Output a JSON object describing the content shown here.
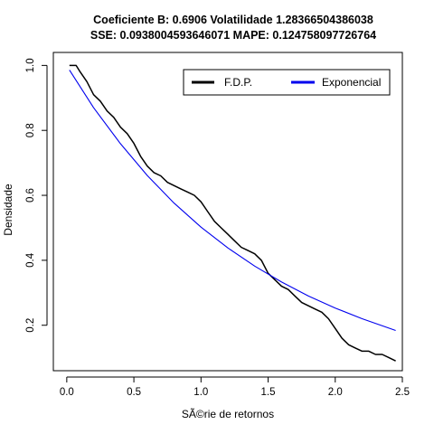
{
  "chart_data": {
    "type": "line",
    "title_line1": "Coeficiente B:  0.6906 Volatilidade 1.28366504386038",
    "title_line2": "SSE: 0.0938004593646071 MAPE:  0.124758097726764",
    "xlabel": "SÃ©rie de retornos",
    "ylabel": "Densidade",
    "xlim": [
      -0.1,
      2.5
    ],
    "ylim": [
      0.06,
      1.04
    ],
    "xticks": [
      0.0,
      0.5,
      1.0,
      1.5,
      2.0,
      2.5
    ],
    "xtick_labels": [
      "0.0",
      "0.5",
      "1.0",
      "1.5",
      "2.0",
      "2.5"
    ],
    "yticks": [
      0.2,
      0.4,
      0.6,
      0.8,
      1.0
    ],
    "ytick_labels": [
      "0.2",
      "0.4",
      "0.6",
      "0.8",
      "1.0"
    ],
    "grid": false,
    "legend_position": "top-right",
    "series": [
      {
        "name": "F.D.P.",
        "color": "#000000",
        "x": [
          0.02,
          0.07,
          0.1,
          0.15,
          0.2,
          0.25,
          0.3,
          0.35,
          0.4,
          0.45,
          0.5,
          0.55,
          0.6,
          0.65,
          0.7,
          0.75,
          0.8,
          0.85,
          0.9,
          0.95,
          1.0,
          1.05,
          1.1,
          1.15,
          1.2,
          1.25,
          1.3,
          1.35,
          1.4,
          1.45,
          1.5,
          1.55,
          1.6,
          1.65,
          1.7,
          1.75,
          1.8,
          1.85,
          1.9,
          1.95,
          2.0,
          2.05,
          2.1,
          2.15,
          2.2,
          2.25,
          2.3,
          2.35,
          2.4,
          2.45
        ],
        "y": [
          1.0,
          1.0,
          0.98,
          0.95,
          0.91,
          0.89,
          0.86,
          0.84,
          0.81,
          0.79,
          0.76,
          0.72,
          0.69,
          0.67,
          0.66,
          0.64,
          0.63,
          0.62,
          0.61,
          0.6,
          0.58,
          0.55,
          0.52,
          0.5,
          0.48,
          0.46,
          0.44,
          0.43,
          0.42,
          0.4,
          0.36,
          0.34,
          0.32,
          0.31,
          0.29,
          0.27,
          0.26,
          0.25,
          0.24,
          0.22,
          0.19,
          0.16,
          0.14,
          0.13,
          0.12,
          0.12,
          0.11,
          0.11,
          0.1,
          0.09
        ]
      },
      {
        "name": "Exponencial",
        "color": "#0000ee",
        "x": [
          0.02,
          0.2,
          0.4,
          0.6,
          0.8,
          1.0,
          1.2,
          1.4,
          1.6,
          1.8,
          2.0,
          2.2,
          2.45
        ],
        "y": [
          0.986,
          0.87,
          0.759,
          0.661,
          0.576,
          0.502,
          0.438,
          0.382,
          0.333,
          0.29,
          0.253,
          0.22,
          0.184
        ]
      }
    ]
  }
}
